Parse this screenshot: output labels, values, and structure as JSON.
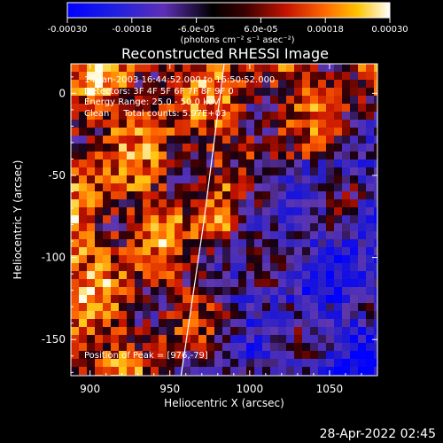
{
  "chart_data": {
    "type": "heatmap",
    "title": "Reconstructed RHESSI Image",
    "xlabel": "Heliocentric X (arcsec)",
    "ylabel": "Heliocentric Y (arcsec)",
    "xlim": [
      888,
      1080
    ],
    "ylim": [
      -172,
      18
    ],
    "xticks": [
      900,
      950,
      1000,
      1050
    ],
    "yticks": [
      0,
      -50,
      -100,
      -150
    ],
    "colorbar": {
      "ticks": [
        "-0.00030",
        "-0.00018",
        "-6.0e-05",
        "6.0e-05",
        "0.00018",
        "0.00030"
      ],
      "range": [
        -0.0003,
        0.0003
      ],
      "units": "(photons cm⁻² s⁻¹ asec⁻²)"
    },
    "peak": [
      976,
      -79
    ],
    "limb_line": [
      [
        957,
        -172
      ],
      [
        971,
        -80
      ],
      [
        984,
        18
      ]
    ],
    "info_lines": [
      "14-Jan-2003 16:44:52.000 to 16:50:52.000",
      "Detectors: 3F 4F 5F 6F 7F 8F 9F 0",
      "Energy Range: 25.0 - 50.0 keV",
      "Clean     Total counts: 5.97E+03"
    ],
    "peak_label": "Position of Peak = [976,-79]"
  },
  "footer": {
    "date": "28-Apr-2022 02:45"
  }
}
